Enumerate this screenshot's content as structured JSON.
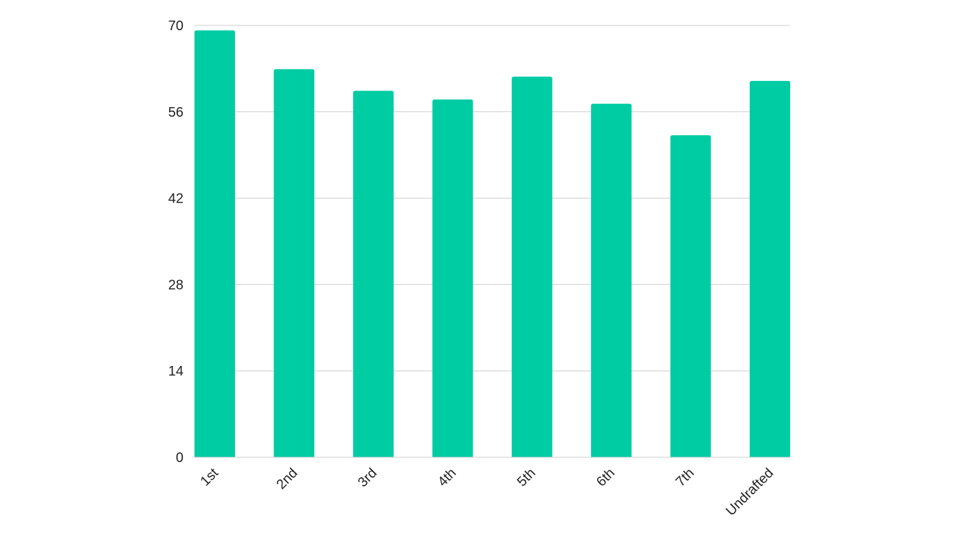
{
  "chart_data": {
    "type": "bar",
    "categories": [
      "1st",
      "2nd",
      "3rd",
      "4th",
      "5th",
      "6th",
      "7th",
      "Undrafted"
    ],
    "values": [
      69.2,
      62.9,
      59.4,
      58.0,
      61.7,
      57.3,
      52.2,
      61.0
    ],
    "title": "",
    "xlabel": "",
    "ylabel": "",
    "ylim": [
      0,
      70
    ],
    "yticks": [
      "0",
      "14",
      "28",
      "42",
      "56",
      "70"
    ],
    "grid": true,
    "legend": "none",
    "bar_color": "#00cca3"
  }
}
